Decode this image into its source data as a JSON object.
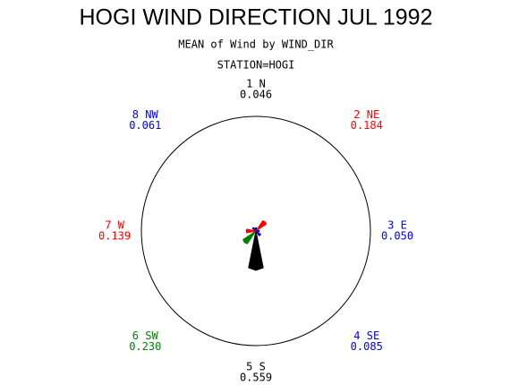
{
  "chart_data": {
    "type": "star",
    "title": "HOGI WIND DIRECTION JUL 1992",
    "subtitle": "MEAN of Wind by WIND_DIR",
    "group": "STATION=HOGI",
    "categories": [
      "1 N",
      "2 NE",
      "3 E",
      "4 SE",
      "5 S",
      "6 SW",
      "7 W",
      "8 NW"
    ],
    "values": [
      0.046,
      0.184,
      0.05,
      0.085,
      0.559,
      0.23,
      0.139,
      0.061
    ],
    "value_labels": [
      "0.046",
      "0.184",
      "0.050",
      "0.085",
      "0.559",
      "0.230",
      "0.139",
      "0.061"
    ],
    "colors": [
      "#000000",
      "#ff0000",
      "#0000ff",
      "#0000ff",
      "#000000",
      "#008000",
      "#ff0000",
      "#0000ff"
    ]
  }
}
